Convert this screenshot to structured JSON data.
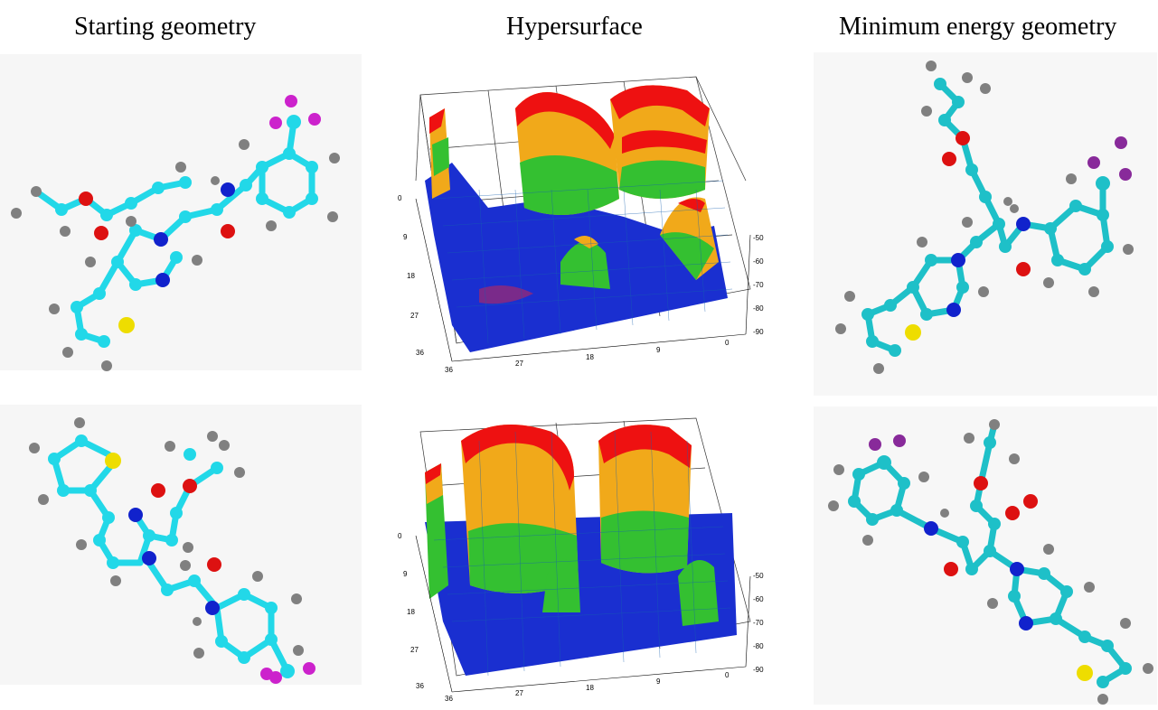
{
  "columns": {
    "start_title": "Starting geometry",
    "surface_title": "Hypersurface",
    "min_title": "Minimum energy geometry"
  },
  "surface_top": {
    "left_axis_ticks": [
      "0",
      "9",
      "18",
      "27",
      "36"
    ],
    "bottom_axis_ticks": [
      "36",
      "27",
      "18",
      "9",
      "0"
    ],
    "right_axis_ticks": [
      "-50",
      "-60",
      "-70",
      "-80",
      "-90"
    ]
  },
  "surface_bottom": {
    "left_axis_ticks": [
      "0",
      "9",
      "18",
      "27",
      "36"
    ],
    "bottom_axis_ticks": [
      "36",
      "27",
      "18",
      "9",
      "0"
    ],
    "right_axis_ticks": [
      "-50",
      "-60",
      "-70",
      "-80",
      "-90"
    ]
  },
  "colors": {
    "carbon_starting": "#22d8e8",
    "carbon_minimum": "#1ec0c8",
    "hydrogen": "#808080",
    "oxygen": "#dd1111",
    "nitrogen": "#1122cc",
    "sulfur": "#eedd00",
    "fluorine": "#cc22cc",
    "surface_base": "#1a2fd0",
    "surface_ridge": "#ee1111"
  }
}
